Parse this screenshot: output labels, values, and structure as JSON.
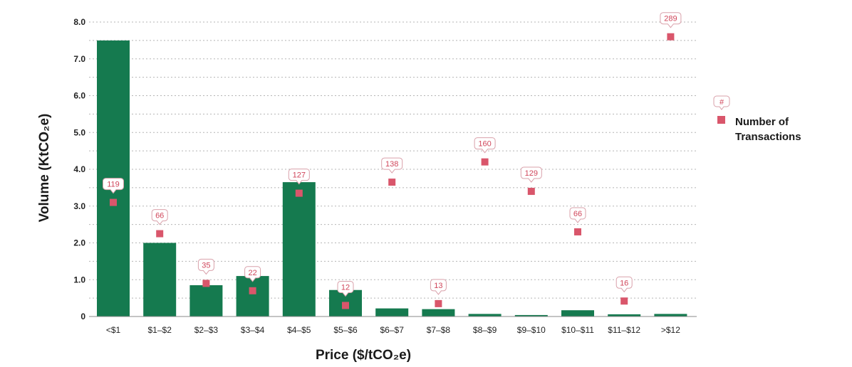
{
  "chart_data": {
    "type": "bar",
    "xlabel": "Price ($/tCO₂e)",
    "ylabel": "Volume (KtCO₂e)",
    "ylim": [
      0,
      8.0
    ],
    "yticks": [
      "0",
      "1.0",
      "2.0",
      "3.0",
      "4.0",
      "5.0",
      "6.0",
      "7.0",
      "8.0"
    ],
    "ytick_values": [
      0,
      1,
      2,
      3,
      4,
      5,
      6,
      7,
      8
    ],
    "categories": [
      "<$1",
      "$1–$2",
      "$2–$3",
      "$3–$4",
      "$4–$5",
      "$5–$6",
      "$6–$7",
      "$7–$8",
      "$8–$9",
      "$9–$10",
      "$10–$11",
      "$11–$12",
      ">$12"
    ],
    "grid": true,
    "legend_position": "right",
    "series": [
      {
        "name": "",
        "kind": "bar",
        "color": "#157a4f",
        "values": [
          7.5,
          2.0,
          0.85,
          1.1,
          3.65,
          0.72,
          0.22,
          0.2,
          0.07,
          0.04,
          0.17,
          0.06,
          0.07
        ]
      },
      {
        "name": "Number of Transactions",
        "kind": "marker",
        "color": "#d9566b",
        "marker_y": [
          3.1,
          2.25,
          0.9,
          0.7,
          3.35,
          0.3,
          3.65,
          0.35,
          4.2,
          3.4,
          2.3,
          0.42,
          7.6
        ],
        "counts": [
          "119",
          "66",
          "35",
          "22",
          "127",
          "12",
          "138",
          "13",
          "160",
          "129",
          "66",
          "16",
          "289"
        ]
      }
    ],
    "legend": {
      "symbol_text": "#",
      "label_line1": "Number of",
      "label_line2": "Transactions"
    }
  }
}
